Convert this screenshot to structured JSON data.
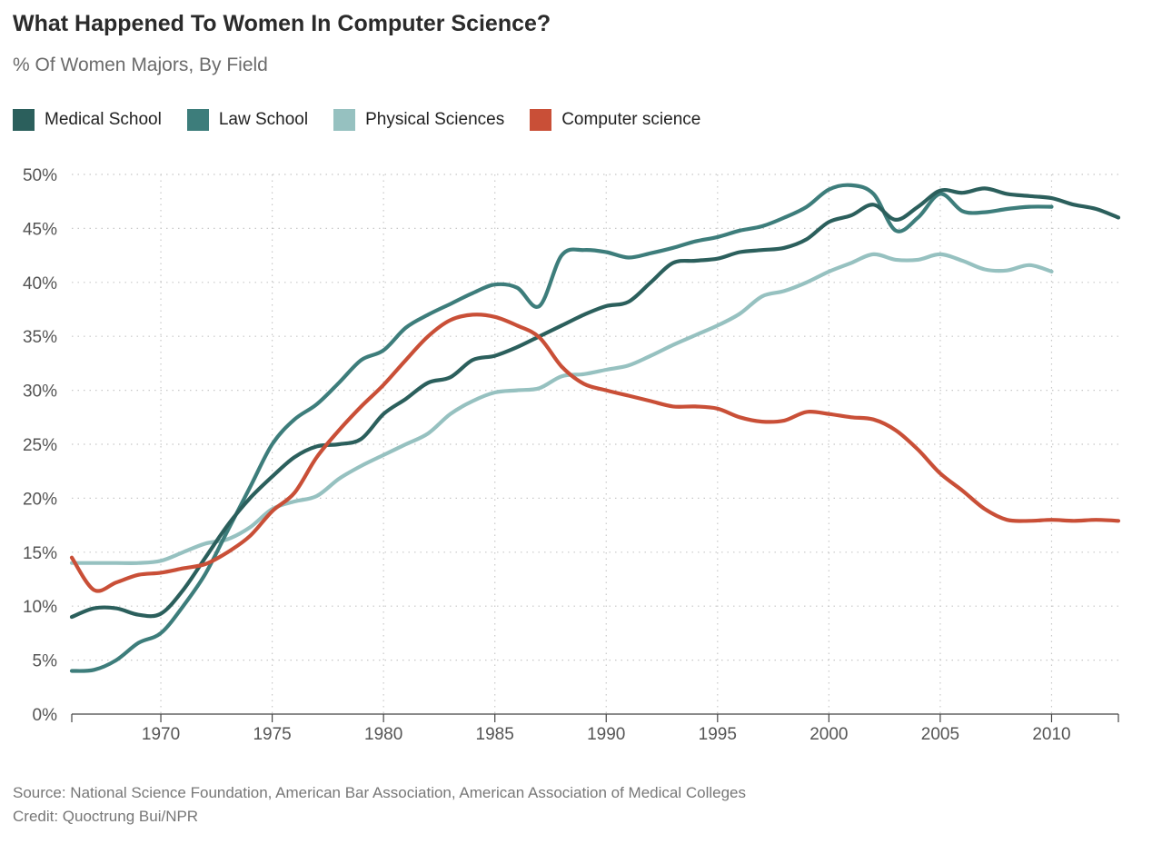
{
  "header": {
    "title": "What Happened To Women In Computer Science?",
    "subtitle": "% Of Women Majors, By Field"
  },
  "footer": {
    "source": "Source: National Science Foundation, American Bar Association, American Association of Medical Colleges",
    "credit": "Credit: Quoctrung Bui/NPR"
  },
  "chart_data": {
    "type": "line",
    "title": "What Happened To Women In Computer Science?",
    "subtitle": "% Of Women Majors, By Field",
    "xlabel": "",
    "ylabel": "",
    "xlim": [
      1966,
      2013
    ],
    "ylim": [
      0,
      50
    ],
    "x_ticks": [
      1970,
      1975,
      1980,
      1985,
      1990,
      1995,
      2000,
      2005,
      2010
    ],
    "x_tick_labels": [
      "1970",
      "1975",
      "1980",
      "1985",
      "1990",
      "1995",
      "2000",
      "2005",
      "2010"
    ],
    "y_ticks": [
      0,
      5,
      10,
      15,
      20,
      25,
      30,
      35,
      40,
      45,
      50
    ],
    "y_tick_labels": [
      "0%",
      "5%",
      "10%",
      "15%",
      "20%",
      "25%",
      "30%",
      "35%",
      "40%",
      "45%",
      "50%"
    ],
    "grid": "dotted",
    "legend_position": "top-left",
    "series": [
      {
        "name": "Medical School",
        "color": "#2b5f5c",
        "x": [
          1966,
          1967,
          1968,
          1969,
          1970,
          1971,
          1972,
          1973,
          1974,
          1975,
          1976,
          1977,
          1978,
          1979,
          1980,
          1981,
          1982,
          1983,
          1984,
          1985,
          1986,
          1987,
          1988,
          1989,
          1990,
          1991,
          1992,
          1993,
          1994,
          1995,
          1996,
          1997,
          1998,
          1999,
          2000,
          2001,
          2002,
          2003,
          2004,
          2005,
          2006,
          2007,
          2008,
          2009,
          2010,
          2011,
          2012,
          2013
        ],
        "y": [
          9,
          9.8,
          9.8,
          9.2,
          9.3,
          11.5,
          14.5,
          17.5,
          20,
          22,
          23.8,
          24.8,
          25,
          25.5,
          27.8,
          29.2,
          30.7,
          31.2,
          32.8,
          33.2,
          34,
          35,
          36,
          37,
          37.8,
          38.2,
          40,
          41.8,
          42,
          42.2,
          42.8,
          43,
          43.2,
          44,
          45.6,
          46.2,
          47.2,
          45.8,
          47,
          48.5,
          48.3,
          48.7,
          48.2,
          48,
          47.8,
          47.2,
          46.8,
          46
        ],
        "values": [
          9,
          9.8,
          9.8,
          9.2,
          9.3,
          11.5,
          14.5,
          17.5,
          20,
          22,
          23.8,
          24.8,
          25,
          25.5,
          27.8,
          29.2,
          30.7,
          31.2,
          32.8,
          33.2,
          34,
          35,
          36,
          37,
          37.8,
          38.2,
          40,
          41.8,
          42,
          42.2,
          42.8,
          43,
          43.2,
          44,
          45.6,
          46.2,
          47.2,
          45.8,
          47,
          48.5,
          48.3,
          48.7,
          48.2,
          48,
          47.8,
          47.2,
          46.8,
          46
        ]
      },
      {
        "name": "Law School",
        "color": "#3d7d7b",
        "x": [
          1966,
          1967,
          1968,
          1969,
          1970,
          1971,
          1972,
          1973,
          1974,
          1975,
          1976,
          1977,
          1978,
          1979,
          1980,
          1981,
          1982,
          1983,
          1984,
          1985,
          1986,
          1987,
          1988,
          1989,
          1990,
          1991,
          1992,
          1993,
          1994,
          1995,
          1996,
          1997,
          1998,
          1999,
          2000,
          2001,
          2002,
          2003,
          2004,
          2005,
          2006,
          2007,
          2008,
          2009,
          2010
        ],
        "y": [
          4,
          4.1,
          5,
          6.6,
          7.5,
          10,
          13,
          17,
          21,
          25,
          27.3,
          28.7,
          30.7,
          32.8,
          33.7,
          35.8,
          37,
          38,
          39,
          39.8,
          39.5,
          37.8,
          42.5,
          43,
          42.8,
          42.3,
          42.7,
          43.2,
          43.8,
          44.2,
          44.8,
          45.2,
          46,
          47,
          48.6,
          49,
          48.2,
          44.8,
          46,
          48.2,
          46.6,
          46.5,
          46.8,
          47,
          47
        ]
      },
      {
        "name": "Physical Sciences",
        "color": "#96c1c0",
        "x": [
          1966,
          1967,
          1968,
          1969,
          1970,
          1971,
          1972,
          1973,
          1974,
          1975,
          1976,
          1977,
          1978,
          1979,
          1980,
          1981,
          1982,
          1983,
          1984,
          1985,
          1986,
          1987,
          1988,
          1989,
          1990,
          1991,
          1992,
          1993,
          1994,
          1995,
          1996,
          1997,
          1998,
          1999,
          2000,
          2001,
          2002,
          2003,
          2004,
          2005,
          2006,
          2007,
          2008,
          2009,
          2010
        ],
        "y": [
          14,
          14,
          14,
          14,
          14.2,
          15,
          15.8,
          16.2,
          17.3,
          19,
          19.7,
          20.2,
          21.8,
          23,
          24,
          25,
          26,
          27.8,
          29,
          29.8,
          30,
          30.2,
          31.3,
          31.5,
          31.9,
          32.3,
          33.2,
          34.2,
          35.1,
          36,
          37.1,
          38.7,
          39.2,
          40,
          41,
          41.8,
          42.6,
          42.1,
          42.1,
          42.6,
          42,
          41.2,
          41.1,
          41.6,
          41
        ]
      },
      {
        "name": "Computer science",
        "color": "#c94f37",
        "x": [
          1966,
          1967,
          1968,
          1969,
          1970,
          1971,
          1972,
          1973,
          1974,
          1975,
          1976,
          1977,
          1978,
          1979,
          1980,
          1981,
          1982,
          1983,
          1984,
          1985,
          1986,
          1987,
          1988,
          1989,
          1990,
          1991,
          1992,
          1993,
          1994,
          1995,
          1996,
          1997,
          1998,
          1999,
          2000,
          2001,
          2002,
          2003,
          2004,
          2005,
          2006,
          2007,
          2008,
          2009,
          2010,
          2011,
          2012,
          2013
        ],
        "y": [
          14.5,
          11.5,
          12.2,
          12.9,
          13.1,
          13.5,
          13.9,
          15,
          16.5,
          18.8,
          20.5,
          23.8,
          26.3,
          28.5,
          30.5,
          32.8,
          35,
          36.5,
          37,
          36.8,
          36,
          34.9,
          32.2,
          30.6,
          30,
          29.5,
          29,
          28.5,
          28.5,
          28.3,
          27.5,
          27.1,
          27.2,
          28,
          27.8,
          27.5,
          27.3,
          26.3,
          24.5,
          22.3,
          20.7,
          19,
          18,
          17.9,
          18,
          17.9,
          18,
          17.9
        ]
      }
    ]
  }
}
